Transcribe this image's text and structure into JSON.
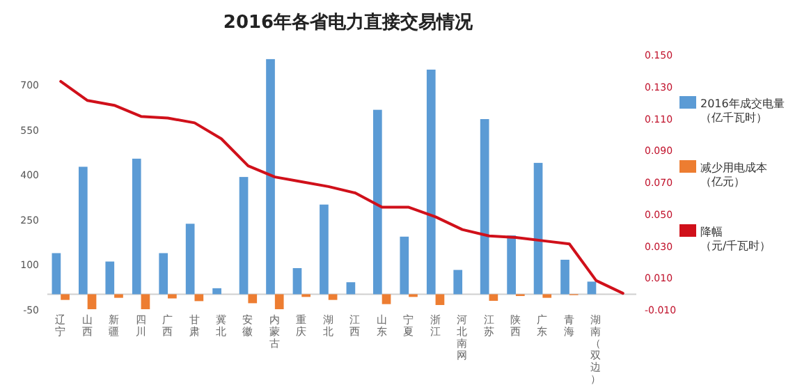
{
  "chart_data": {
    "type": "bar",
    "title": "2016年各省电力直接交易情况",
    "categories": [
      "辽宁",
      "山西",
      "新疆",
      "四川",
      "广西",
      "甘肃",
      "冀北",
      "安徽",
      "内蒙古",
      "重庆",
      "湖北",
      "江西",
      "山东",
      "宁夏",
      "浙江",
      "河北南网",
      "江苏",
      "陕西",
      "广东",
      "青海",
      "湖南（双边）",
      null
    ],
    "series": [
      {
        "name": "2016年成交电量（亿千瓦时）",
        "color": "#5b9bd5",
        "values": [
          137,
          425,
          109,
          452,
          137,
          235,
          20,
          391,
          784,
          87,
          299,
          40,
          615,
          192,
          749,
          81,
          584,
          196,
          438,
          115,
          42,
          null
        ]
      },
      {
        "name": "减少用电成本（亿元）",
        "color": "#ed7d31",
        "values": [
          -19,
          -50,
          -12,
          -50,
          -14,
          -23,
          0,
          -30,
          -50,
          -9,
          -19,
          0,
          -33,
          -9,
          -36,
          0,
          -22,
          -6,
          -12,
          -3,
          0,
          null
        ]
      },
      {
        "name": "降幅（元/千瓦时）",
        "color": "#d0101a",
        "type": "line",
        "axis": "y2",
        "values": [
          0.133,
          0.121,
          0.118,
          0.111,
          0.11,
          0.107,
          0.097,
          0.08,
          0.073,
          0.07,
          0.067,
          0.063,
          0.054,
          0.054,
          0.048,
          0.04,
          0.036,
          0.035,
          0.033,
          0.031,
          0.008,
          0.0
        ]
      }
    ],
    "ylim": [
      -50,
      800
    ],
    "yticks": [
      -50,
      100,
      250,
      400,
      550,
      700
    ],
    "y2lim": [
      -0.01,
      0.15
    ],
    "y2ticks": [
      {
        "value": -0.01,
        "label": "-0.010"
      },
      {
        "value": 0.01,
        "label": "0.010"
      },
      {
        "value": 0.03,
        "label": "0.030"
      },
      {
        "value": 0.05,
        "label": "0.050"
      },
      {
        "value": 0.07,
        "label": "0.070"
      },
      {
        "value": 0.09,
        "label": "0.090"
      },
      {
        "value": 0.11,
        "label": "0.110"
      },
      {
        "value": 0.13,
        "label": "0.130"
      },
      {
        "value": 0.15,
        "label": "0.150"
      }
    ],
    "legend": "right"
  }
}
